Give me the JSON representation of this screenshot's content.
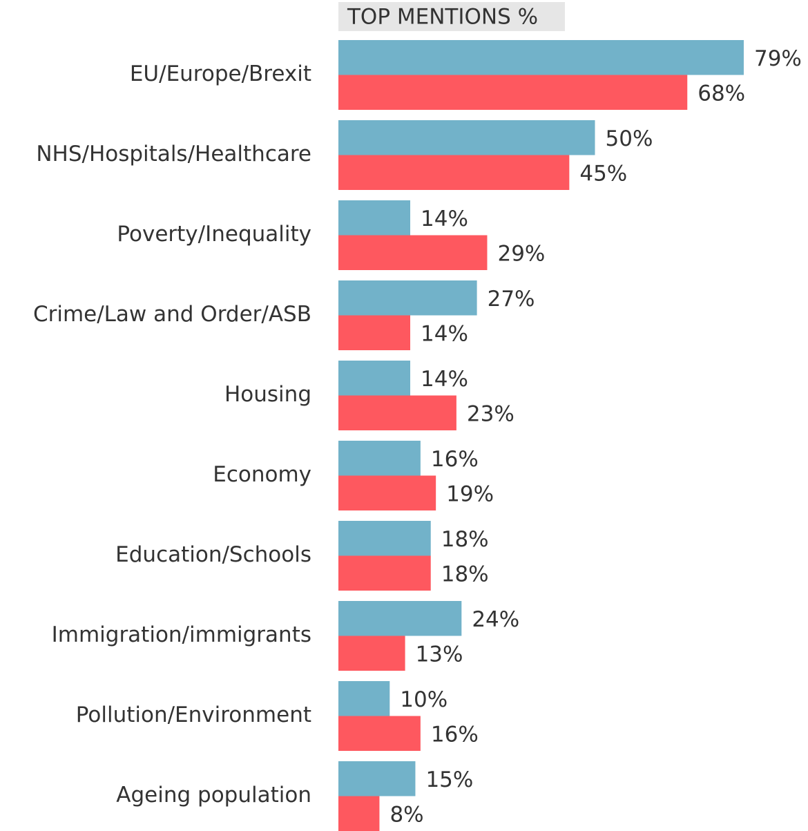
{
  "chart_data": {
    "type": "bar",
    "orientation": "horizontal",
    "title": "TOP MENTIONS %",
    "categories": [
      "EU/Europe/Brexit",
      "NHS/Hospitals/Healthcare",
      "Poverty/Inequality",
      "Crime/Law and Order/ASB",
      "Housing",
      "Economy",
      "Education/Schools",
      "Immigration/immigrants",
      "Pollution/Environment",
      "Ageing population"
    ],
    "series": [
      {
        "color": "#72b2c9",
        "values": [
          79,
          50,
          14,
          27,
          14,
          16,
          18,
          24,
          10,
          15
        ],
        "value_labels": [
          "79%",
          "50%",
          "14%",
          "27%",
          "14%",
          "16%",
          "18%",
          "24%",
          "10%",
          "15%"
        ]
      },
      {
        "color": "#fe585f",
        "values": [
          68,
          45,
          29,
          14,
          23,
          19,
          18,
          13,
          16,
          8
        ],
        "value_labels": [
          "68%",
          "45%",
          "29%",
          "14%",
          "23%",
          "19%",
          "18%",
          "13%",
          "16%",
          "8%"
        ]
      }
    ]
  }
}
